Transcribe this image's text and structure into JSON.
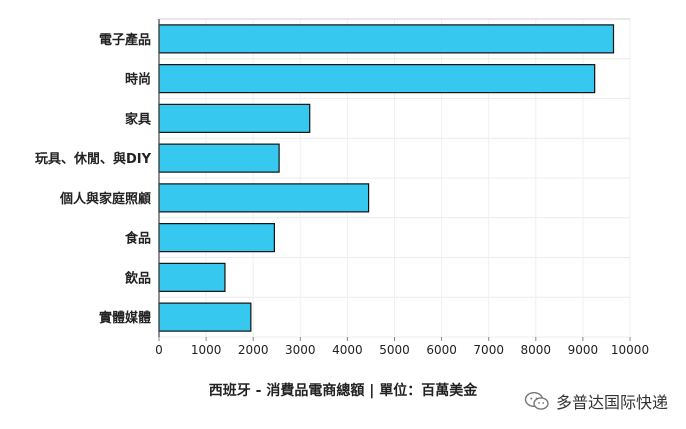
{
  "chart_data": {
    "type": "bar",
    "orientation": "horizontal",
    "categories": [
      "電子產品",
      "時尚",
      "家具",
      "玩具、休閒、與DIY",
      "個人與家庭照顧",
      "食品",
      "飲品",
      "實體媒體"
    ],
    "values": [
      9650,
      9250,
      3200,
      2550,
      4450,
      2450,
      1400,
      1950
    ],
    "xlim": [
      0,
      10000
    ],
    "xticks": [
      0,
      1000,
      2000,
      3000,
      4000,
      5000,
      6000,
      7000,
      8000,
      9000,
      10000
    ],
    "caption": "西班牙 - 消費品電商總額 | 單位：百萬美金",
    "grid": true,
    "bar_color": "#37C8F0",
    "bar_stroke": "#111111"
  },
  "watermark": {
    "text": "多普达国际快递",
    "icon": "wechat-icon"
  }
}
